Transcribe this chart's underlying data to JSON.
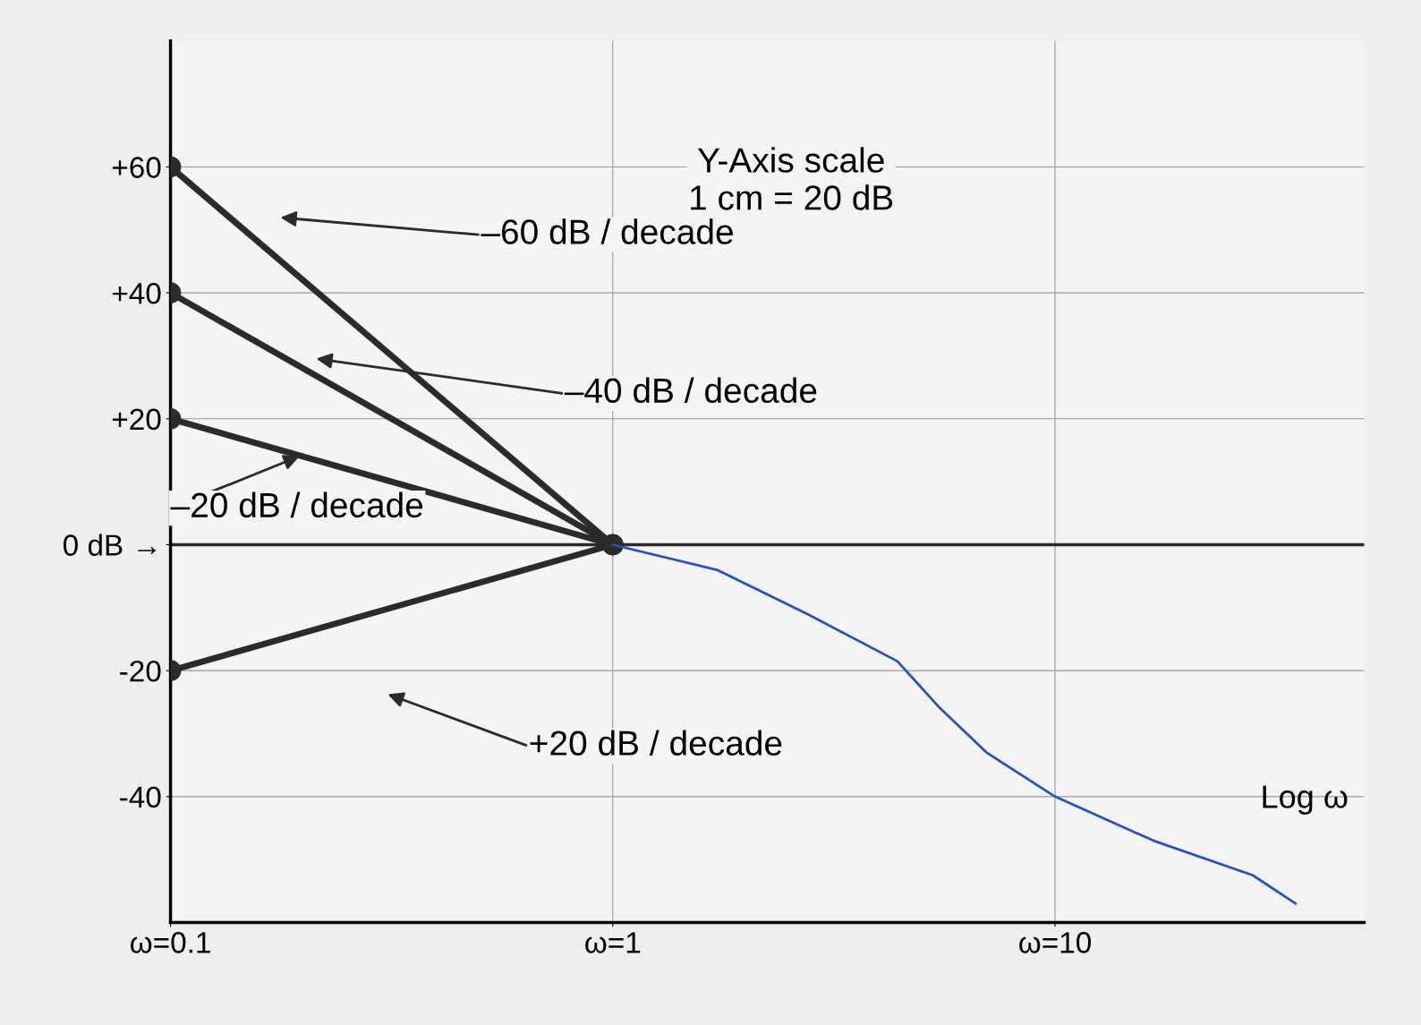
{
  "chart_data": {
    "type": "line",
    "xlabel": "Log ω",
    "log": "x",
    "xlim": [
      0.1,
      50
    ],
    "ylim": [
      -60,
      80
    ],
    "xticks": [
      {
        "value": 0.1,
        "label": "ω=0.1"
      },
      {
        "value": 1,
        "label": "ω=1"
      },
      {
        "value": 10,
        "label": "ω=10"
      }
    ],
    "yticks": [
      {
        "value": 60,
        "label": "+60"
      },
      {
        "value": 40,
        "label": "+40"
      },
      {
        "value": 20,
        "label": "+20"
      },
      {
        "value": 0,
        "label": "0 dB →"
      },
      -20,
      -40
    ],
    "grid": true,
    "marker": "circle",
    "line_style": "solid",
    "series": [
      {
        "color": "#2b2b2b",
        "x": [
          0.1,
          1
        ],
        "values": [
          60,
          0
        ]
      },
      {
        "color": "#2b2b2b",
        "x": [
          0.1,
          1
        ],
        "values": [
          40,
          0
        ]
      },
      {
        "color": "#2b2b2b",
        "x": [
          0.1,
          1
        ],
        "values": [
          20,
          0
        ]
      },
      {
        "color": "#2b2b2b",
        "x": [
          0.1,
          1
        ],
        "values": [
          -20,
          0
        ]
      },
      {
        "color": "#2a4fc0",
        "marker": "none",
        "x": [
          1,
          1.72,
          2.75,
          4.4,
          5.5,
          7,
          10,
          16.7,
          28,
          35
        ],
        "values": [
          0,
          -4,
          -11,
          -18.5,
          -26,
          -33,
          -40,
          -47,
          -52.5,
          -57
        ]
      }
    ],
    "annotations": [
      "–60 dB / decade",
      "–40 dB / decade",
      "–20 dB / decade",
      "+20 dB / decade",
      "Y-Axis scale\n1 cm = 20 dB"
    ]
  }
}
